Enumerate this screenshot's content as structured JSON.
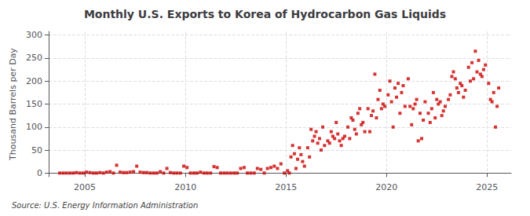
{
  "chart_data": {
    "type": "scatter",
    "title": "Monthly U.S. Exports to Korea of Hydrocarbon Gas Liquids",
    "ylabel": "Thousand Barrels per Day",
    "source": "Source: U.S. Energy Information Administration",
    "color": "#cc0000",
    "marker": "square",
    "grid": true,
    "xlim": [
      2003.2,
      2026.2
    ],
    "ylim": [
      -8,
      308
    ],
    "xticks": [
      2005,
      2010,
      2015,
      2020,
      2025
    ],
    "yticks": [
      0,
      50,
      100,
      150,
      200,
      250,
      300
    ],
    "x": [
      2003.75,
      2003.92,
      2004.08,
      2004.25,
      2004.42,
      2004.58,
      2004.75,
      2004.92,
      2005.08,
      2005.25,
      2005.42,
      2005.58,
      2005.75,
      2005.92,
      2006.08,
      2006.25,
      2006.42,
      2006.58,
      2006.75,
      2006.92,
      2007.08,
      2007.25,
      2007.42,
      2007.58,
      2007.75,
      2007.92,
      2008.08,
      2008.25,
      2008.42,
      2008.58,
      2008.75,
      2008.92,
      2009.08,
      2009.25,
      2009.42,
      2009.58,
      2009.75,
      2009.92,
      2010.08,
      2010.25,
      2010.42,
      2010.58,
      2010.75,
      2010.92,
      2011.08,
      2011.25,
      2011.42,
      2011.58,
      2011.75,
      2011.92,
      2012.08,
      2012.25,
      2012.42,
      2012.58,
      2012.75,
      2012.92,
      2013.08,
      2013.25,
      2013.42,
      2013.58,
      2013.75,
      2013.92,
      2014.08,
      2014.25,
      2014.42,
      2014.58,
      2014.75,
      2014.92,
      2015.08,
      2015.17,
      2015.25,
      2015.33,
      2015.42,
      2015.5,
      2015.58,
      2015.67,
      2015.75,
      2015.83,
      2015.92,
      2016.08,
      2016.17,
      2016.25,
      2016.33,
      2016.42,
      2016.5,
      2016.58,
      2016.67,
      2016.75,
      2016.83,
      2016.92,
      2017.08,
      2017.17,
      2017.25,
      2017.33,
      2017.42,
      2017.5,
      2017.58,
      2017.67,
      2017.75,
      2017.83,
      2017.92,
      2018.08,
      2018.17,
      2018.25,
      2018.33,
      2018.42,
      2018.5,
      2018.58,
      2018.67,
      2018.75,
      2018.83,
      2018.92,
      2019.08,
      2019.17,
      2019.25,
      2019.33,
      2019.42,
      2019.5,
      2019.58,
      2019.67,
      2019.75,
      2019.83,
      2019.92,
      2020.08,
      2020.17,
      2020.25,
      2020.33,
      2020.42,
      2020.5,
      2020.58,
      2020.67,
      2020.75,
      2020.83,
      2020.92,
      2021.08,
      2021.17,
      2021.25,
      2021.33,
      2021.42,
      2021.5,
      2021.58,
      2021.67,
      2021.75,
      2021.83,
      2021.92,
      2022.08,
      2022.17,
      2022.25,
      2022.33,
      2022.42,
      2022.5,
      2022.58,
      2022.67,
      2022.75,
      2022.83,
      2022.92,
      2023.08,
      2023.17,
      2023.25,
      2023.33,
      2023.42,
      2023.5,
      2023.58,
      2023.67,
      2023.75,
      2023.83,
      2023.92,
      2024.08,
      2024.17,
      2024.25,
      2024.33,
      2024.42,
      2024.5,
      2024.58,
      2024.67,
      2024.75,
      2024.83,
      2024.92,
      2025.08,
      2025.17,
      2025.25,
      2025.33,
      2025.42,
      2025.5,
      2025.58
    ],
    "values": [
      0,
      0,
      0,
      0,
      0,
      1,
      0,
      0,
      2,
      1,
      0,
      0,
      1,
      0,
      2,
      3,
      0,
      17,
      2,
      1,
      1,
      2,
      3,
      15,
      2,
      1,
      1,
      0,
      0,
      0,
      3,
      0,
      10,
      1,
      0,
      0,
      0,
      15,
      12,
      0,
      0,
      0,
      2,
      0,
      0,
      0,
      14,
      12,
      0,
      0,
      0,
      0,
      0,
      0,
      10,
      12,
      0,
      0,
      0,
      10,
      8,
      0,
      10,
      12,
      15,
      10,
      20,
      0,
      5,
      0,
      35,
      60,
      42,
      10,
      30,
      55,
      40,
      25,
      15,
      55,
      35,
      95,
      70,
      80,
      90,
      65,
      75,
      50,
      100,
      60,
      70,
      65,
      90,
      80,
      75,
      110,
      85,
      70,
      60,
      75,
      80,
      100,
      75,
      120,
      115,
      95,
      85,
      130,
      140,
      105,
      110,
      90,
      140,
      90,
      125,
      135,
      215,
      120,
      160,
      180,
      140,
      150,
      145,
      170,
      200,
      155,
      100,
      185,
      165,
      195,
      130,
      175,
      190,
      145,
      205,
      145,
      105,
      140,
      150,
      160,
      70,
      130,
      75,
      115,
      155,
      130,
      110,
      140,
      175,
      120,
      160,
      150,
      155,
      125,
      135,
      145,
      160,
      170,
      210,
      220,
      205,
      185,
      175,
      195,
      190,
      165,
      180,
      230,
      200,
      240,
      205,
      265,
      220,
      245,
      215,
      210,
      225,
      235,
      195,
      160,
      155,
      175,
      100,
      145,
      185
    ]
  }
}
